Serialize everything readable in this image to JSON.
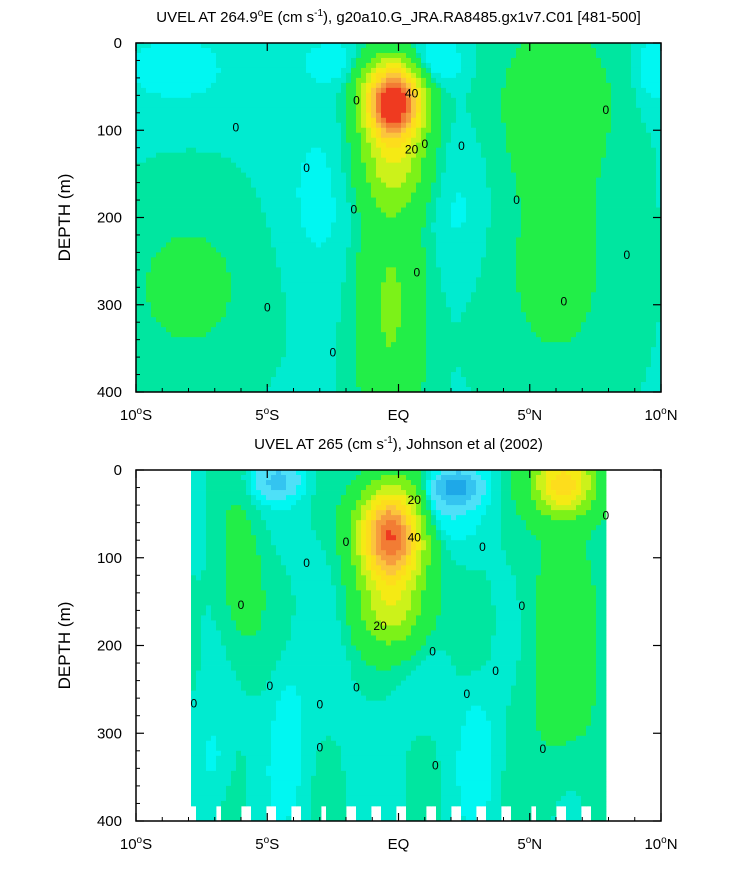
{
  "colors": {
    "level_neg_4": "#1ea8e8",
    "level_neg_3": "#34c4f0",
    "level_neg_2": "#4ee0f8",
    "level_neg_1": "#00f7f2",
    "level_0": "#00ebd0",
    "level_1": "#00e6a0",
    "level_2": "#22ee48",
    "level_3": "#7cf218",
    "level_4": "#ccf21a",
    "level_5": "#f5ea14",
    "level_6": "#fddd1c",
    "level_7": "#fbc53c",
    "level_8": "#f69d3e",
    "level_9": "#f27c34",
    "level_10": "#ef3a20",
    "contour_line": "#000000",
    "frame": "#000000"
  },
  "chart_data": [
    {
      "type": "heatmap",
      "title_parts": [
        "UVEL AT 264.9",
        "o",
        "E (cm s",
        "-1",
        "), g20a10.G_JRA.RA8485.gx1v7.C01 [481-500]"
      ],
      "xlabel": "",
      "ylabel": "DEPTH (m)",
      "x_ticks": [
        {
          "value": -10,
          "label": "10",
          "deg": "o",
          "hemi": "S"
        },
        {
          "value": -5,
          "label": "5",
          "deg": "o",
          "hemi": "S"
        },
        {
          "value": 0,
          "label": "EQ",
          "deg": "",
          "hemi": ""
        },
        {
          "value": 5,
          "label": "5",
          "deg": "o",
          "hemi": "N"
        },
        {
          "value": 10,
          "label": "10",
          "deg": "o",
          "hemi": "N"
        }
      ],
      "y_ticks": [
        0,
        100,
        200,
        300,
        400
      ],
      "xlim": [
        -10,
        10
      ],
      "ylim": [
        400,
        0
      ],
      "contour_labels": [
        {
          "text": "0",
          "x": -6.2,
          "y": 97
        },
        {
          "text": "0",
          "x": -3.5,
          "y": 143
        },
        {
          "text": "0",
          "x": -5.0,
          "y": 303
        },
        {
          "text": "0",
          "x": -1.6,
          "y": 66
        },
        {
          "text": "0",
          "x": -1.7,
          "y": 191
        },
        {
          "text": "0",
          "x": -2.5,
          "y": 355
        },
        {
          "text": "0",
          "x": 1.0,
          "y": 116
        },
        {
          "text": "0",
          "x": 2.4,
          "y": 118
        },
        {
          "text": "0",
          "x": 0.7,
          "y": 263
        },
        {
          "text": "0",
          "x": 4.5,
          "y": 180
        },
        {
          "text": "0",
          "x": 6.3,
          "y": 296
        },
        {
          "text": "0",
          "x": 7.9,
          "y": 77
        },
        {
          "text": "0",
          "x": 8.7,
          "y": 243
        },
        {
          "text": "40",
          "x": 0.5,
          "y": 58
        },
        {
          "text": "20",
          "x": 0.5,
          "y": 122
        }
      ],
      "features": [
        {
          "kind": "core",
          "x": -0.2,
          "y": 68,
          "width_deg": 2.4,
          "depth_halfwidth_m": 40,
          "peak": 80,
          "tail_depth_m": 170
        },
        {
          "kind": "surface_westward",
          "x": 1.3,
          "y": 25,
          "peak": -25
        },
        {
          "kind": "surface_westward",
          "x": -2.6,
          "y": 25,
          "peak": -15
        }
      ]
    },
    {
      "type": "heatmap",
      "title_parts": [
        "UVEL AT 265 (cm s",
        "-1",
        "), Johnson et al (2002)"
      ],
      "xlabel": "",
      "ylabel": "DEPTH (m)",
      "x_ticks": [
        {
          "value": -10,
          "label": "10",
          "deg": "o",
          "hemi": "S"
        },
        {
          "value": -5,
          "label": "5",
          "deg": "o",
          "hemi": "S"
        },
        {
          "value": 0,
          "label": "EQ",
          "deg": "",
          "hemi": ""
        },
        {
          "value": 5,
          "label": "5",
          "deg": "o",
          "hemi": "N"
        },
        {
          "value": 10,
          "label": "10",
          "deg": "o",
          "hemi": "N"
        }
      ],
      "y_ticks": [
        0,
        100,
        200,
        300,
        400
      ],
      "xlim": [
        -10,
        10
      ],
      "ylim": [
        400,
        0
      ],
      "data_xrange": [
        -8,
        8
      ],
      "contour_labels": [
        {
          "text": "0",
          "x": -7.8,
          "y": 266
        },
        {
          "text": "0",
          "x": -6.0,
          "y": 154
        },
        {
          "text": "0",
          "x": -4.9,
          "y": 246
        },
        {
          "text": "0",
          "x": -3.5,
          "y": 106
        },
        {
          "text": "0",
          "x": -2.0,
          "y": 82
        },
        {
          "text": "0",
          "x": -3.0,
          "y": 267
        },
        {
          "text": "0",
          "x": -3.0,
          "y": 316
        },
        {
          "text": "0",
          "x": -1.6,
          "y": 248
        },
        {
          "text": "0",
          "x": 1.3,
          "y": 207
        },
        {
          "text": "0",
          "x": 1.4,
          "y": 337
        },
        {
          "text": "0",
          "x": 2.6,
          "y": 255
        },
        {
          "text": "0",
          "x": 3.2,
          "y": 88
        },
        {
          "text": "0",
          "x": 3.7,
          "y": 229
        },
        {
          "text": "0",
          "x": 4.7,
          "y": 155
        },
        {
          "text": "0",
          "x": 5.5,
          "y": 318
        },
        {
          "text": "0",
          "x": 7.9,
          "y": 52
        },
        {
          "text": "20",
          "x": 0.6,
          "y": 34
        },
        {
          "text": "40",
          "x": 0.6,
          "y": 77
        },
        {
          "text": "20",
          "x": -0.7,
          "y": 178
        }
      ],
      "features": [
        {
          "kind": "core",
          "x": -0.3,
          "y": 75,
          "width_deg": 2.6,
          "depth_halfwidth_m": 50,
          "peak": 68,
          "tail_depth_m": 185
        },
        {
          "kind": "north_jet",
          "x": 6.3,
          "y": 15,
          "peak": 40
        },
        {
          "kind": "surface_westward",
          "x": 2.2,
          "y": 20,
          "peak": -40
        },
        {
          "kind": "surface_westward",
          "x": -4.6,
          "y": 15,
          "peak": -20
        }
      ]
    }
  ]
}
